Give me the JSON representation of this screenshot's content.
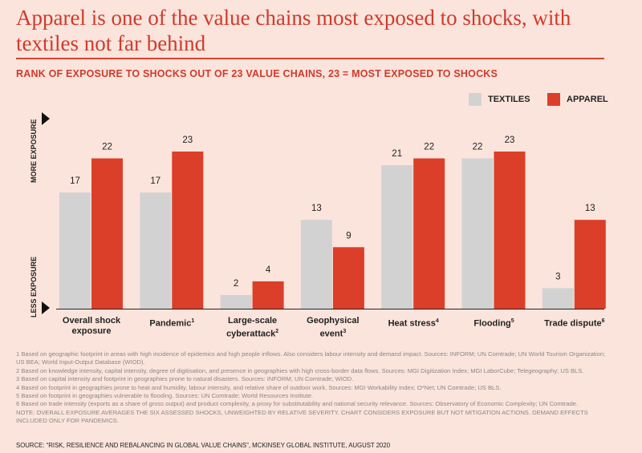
{
  "title": "Apparel is one of the value chains most exposed to shocks, with textiles not far behind",
  "chart_data": {
    "type": "bar",
    "title": "RANK OF EXPOSURE TO SHOCKS OUT OF 23 VALUE CHAINS, 23 = MOST EXPOSED TO SHOCKS",
    "ylabel_top": "MORE EXPOSURE",
    "ylabel_bottom": "LESS EXPOSURE",
    "ylim": [
      0,
      23
    ],
    "legend_position": "top-right",
    "categories": [
      {
        "label": "Overall shock exposure",
        "sup": ""
      },
      {
        "label": "Pandemic",
        "sup": "1"
      },
      {
        "label": "Large-scale cyberattack",
        "sup": "2"
      },
      {
        "label": "Geophysical event",
        "sup": "3"
      },
      {
        "label": "Heat stress",
        "sup": "4"
      },
      {
        "label": "Flooding",
        "sup": "5"
      },
      {
        "label": "Trade dispute",
        "sup": "6"
      }
    ],
    "series": [
      {
        "name": "TEXTILES",
        "color": "#d3d2d2",
        "values": [
          17,
          17,
          2,
          13,
          21,
          22,
          3
        ]
      },
      {
        "name": "APPAREL",
        "color": "#dc3f29",
        "values": [
          22,
          23,
          4,
          9,
          22,
          23,
          13
        ]
      }
    ]
  },
  "footnotes": [
    "1 Based on geographic footprint in areas with high incidence of epidemics and high people inflows. Also considers labour intensity and demand impact. Sources: INFORM; UN Comtrade; UN World Tourism Organization; US BEA; World Input-Output Database (WIOD).",
    "2 Based on knowledge intensity, capital intensity, degree of digitisation, and presence in geographies with high cross-border data flows. Sources: MGI Digitization Index; MGI LaborCube; Telegeography; US BLS.",
    "3 Based on capital intensity and footprint in geographies prone to natural disasters. Sources: INFORM; UN Comtrade; WIOD.",
    "4 Based on footprint in geographies prone to heat and humidity, labour intensity, and relative share of outdoor work. Sources: MGI Workability Index; O*Net; UN Comtrade; US BLS.",
    "5 Based on footprint in geographies vulnerable to flooding. Sources: UN Comtrade; World Resources Institute.",
    "6 Based on trade intensity (exports as a share of gross output) and product complexity, a proxy for substitutability and national security relevance. Sources: Observatory of Economic Complexity; UN Comtrade."
  ],
  "note": "Note: Overall exposure averages the six assessed shocks, unweighted by relative severity. Chart considers exposure but not mitigation actions. Demand effects included only for pandemics.",
  "source": "SOURCE: “RISK, RESILIENCE AND REBALANCING IN GLOBAL VALUE CHAINS”, MCKINSEY GLOBAL INSTITUTE, AUGUST 2020"
}
